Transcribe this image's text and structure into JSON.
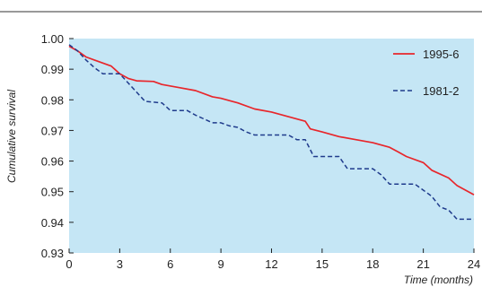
{
  "chart_data": {
    "type": "line",
    "xlabel": "Time (months)",
    "ylabel": "Cumulative survival",
    "xlim": [
      0,
      24
    ],
    "ylim": [
      0.93,
      1.0
    ],
    "x_ticks": [
      0,
      3,
      6,
      9,
      12,
      15,
      18,
      21,
      24
    ],
    "x_tick_labels": [
      "0",
      "3",
      "6",
      "9",
      "12",
      "15",
      "18",
      "21",
      "24"
    ],
    "y_ticks": [
      0.93,
      0.94,
      0.95,
      0.96,
      0.97,
      0.98,
      0.99,
      1.0
    ],
    "y_tick_labels": [
      "0.93",
      "0.94",
      "0.95",
      "0.96",
      "0.97",
      "0.98",
      "0.99",
      "1.00"
    ],
    "grid": false,
    "background_color": "#c5e6f5",
    "legend_position": "top-right",
    "series": [
      {
        "name": "1995-6",
        "color": "#e8262b",
        "style": "solid",
        "points": [
          [
            0,
            0.9975
          ],
          [
            0.5,
            0.996
          ],
          [
            1,
            0.994
          ],
          [
            1.5,
            0.993
          ],
          [
            2,
            0.992
          ],
          [
            2.5,
            0.991
          ],
          [
            3,
            0.9885
          ],
          [
            3.5,
            0.987
          ],
          [
            4,
            0.9862
          ],
          [
            5,
            0.986
          ],
          [
            5.5,
            0.985
          ],
          [
            6.5,
            0.984
          ],
          [
            7.5,
            0.983
          ],
          [
            8.5,
            0.981
          ],
          [
            9,
            0.9805
          ],
          [
            10,
            0.979
          ],
          [
            11,
            0.977
          ],
          [
            12,
            0.976
          ],
          [
            13,
            0.9745
          ],
          [
            14,
            0.973
          ],
          [
            14.3,
            0.9705
          ],
          [
            15,
            0.9695
          ],
          [
            16,
            0.968
          ],
          [
            17,
            0.967
          ],
          [
            18,
            0.966
          ],
          [
            19,
            0.9645
          ],
          [
            19.5,
            0.963
          ],
          [
            20,
            0.9615
          ],
          [
            21,
            0.9595
          ],
          [
            21.5,
            0.957
          ],
          [
            22.5,
            0.9545
          ],
          [
            23,
            0.952
          ],
          [
            24,
            0.949
          ]
        ]
      },
      {
        "name": "1981-2",
        "color": "#1f3b8c",
        "style": "dashed",
        "points": [
          [
            0,
            0.998
          ],
          [
            0.5,
            0.996
          ],
          [
            1,
            0.993
          ],
          [
            1.5,
            0.9905
          ],
          [
            2,
            0.9885
          ],
          [
            3,
            0.9885
          ],
          [
            3.5,
            0.9855
          ],
          [
            4.5,
            0.9795
          ],
          [
            5.5,
            0.979
          ],
          [
            6,
            0.9765
          ],
          [
            7,
            0.9765
          ],
          [
            7.5,
            0.975
          ],
          [
            8.5,
            0.9725
          ],
          [
            9,
            0.9725
          ],
          [
            9.5,
            0.9715
          ],
          [
            10,
            0.971
          ],
          [
            10.5,
            0.9695
          ],
          [
            11,
            0.9685
          ],
          [
            13,
            0.9685
          ],
          [
            13.5,
            0.967
          ],
          [
            14,
            0.967
          ],
          [
            14.5,
            0.9615
          ],
          [
            16,
            0.9615
          ],
          [
            16.5,
            0.9575
          ],
          [
            18,
            0.9575
          ],
          [
            18.5,
            0.9555
          ],
          [
            19,
            0.9525
          ],
          [
            20.5,
            0.9525
          ],
          [
            21,
            0.9505
          ],
          [
            21.5,
            0.9485
          ],
          [
            22,
            0.945
          ],
          [
            22.5,
            0.944
          ],
          [
            23,
            0.941
          ],
          [
            24,
            0.941
          ]
        ]
      }
    ]
  }
}
